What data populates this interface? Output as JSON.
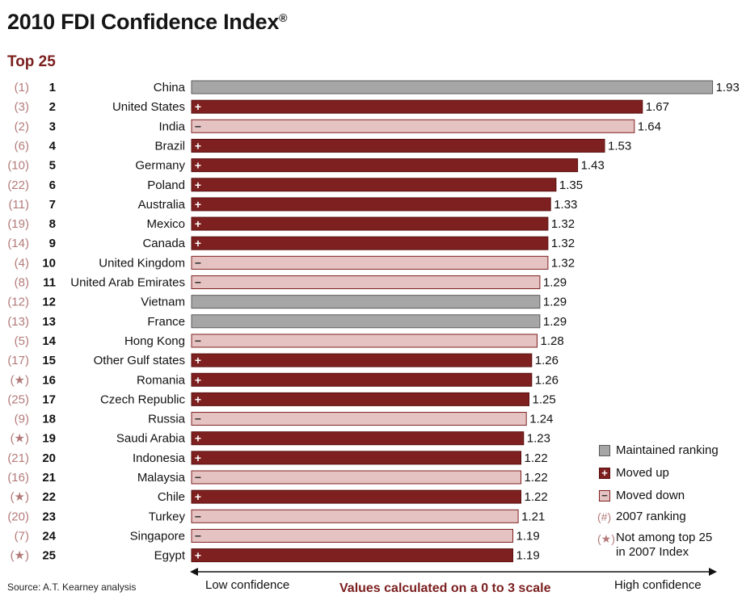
{
  "title": "2010 FDI Confidence Index",
  "title_mark": "®",
  "subtitle": "Top 25",
  "source": "Source: A.T. Kearney analysis",
  "axis": {
    "low_label": "Low confidence",
    "center_label": "Values calculated on a 0 to 3 scale",
    "high_label": "High confidence"
  },
  "colors": {
    "maintained": "#a6a6a6",
    "moved_up": "#7e2020",
    "moved_down": "#e6c3c3",
    "prev_rank_text": "#b47a7a",
    "accent": "#7b1e1e"
  },
  "legend": {
    "maintained": "Maintained ranking",
    "moved_up": "Moved up",
    "moved_down": "Moved down",
    "prev_rank_symbol": "(#)",
    "prev_rank": "2007 ranking",
    "star_symbol": "(★)",
    "not_top25_line1": "Not among top 25",
    "not_top25_line2": "in 2007 Index",
    "up_sign": "+",
    "down_sign": "−"
  },
  "chart_data": {
    "type": "bar",
    "orientation": "horizontal",
    "title": "2010 FDI Confidence Index",
    "subtitle": "Top 25",
    "scale": [
      0,
      3
    ],
    "xlim": [
      0,
      3
    ],
    "grid": false,
    "legend_position": "bottom-right",
    "rows": [
      {
        "prev": "(1)",
        "rank": "1",
        "country": "China",
        "value": 1.93,
        "status": "maintained"
      },
      {
        "prev": "(3)",
        "rank": "2",
        "country": "United States",
        "value": 1.67,
        "status": "up"
      },
      {
        "prev": "(2)",
        "rank": "3",
        "country": "India",
        "value": 1.64,
        "status": "down"
      },
      {
        "prev": "(6)",
        "rank": "4",
        "country": "Brazil",
        "value": 1.53,
        "status": "up"
      },
      {
        "prev": "(10)",
        "rank": "5",
        "country": "Germany",
        "value": 1.43,
        "status": "up"
      },
      {
        "prev": "(22)",
        "rank": "6",
        "country": "Poland",
        "value": 1.35,
        "status": "up"
      },
      {
        "prev": "(11)",
        "rank": "7",
        "country": "Australia",
        "value": 1.33,
        "status": "up"
      },
      {
        "prev": "(19)",
        "rank": "8",
        "country": "Mexico",
        "value": 1.32,
        "status": "up"
      },
      {
        "prev": "(14)",
        "rank": "9",
        "country": "Canada",
        "value": 1.32,
        "status": "up"
      },
      {
        "prev": "(4)",
        "rank": "10",
        "country": "United Kingdom",
        "value": 1.32,
        "status": "down"
      },
      {
        "prev": "(8)",
        "rank": "11",
        "country": "United Arab Emirates",
        "value": 1.29,
        "status": "down"
      },
      {
        "prev": "(12)",
        "rank": "12",
        "country": "Vietnam",
        "value": 1.29,
        "status": "maintained"
      },
      {
        "prev": "(13)",
        "rank": "13",
        "country": "France",
        "value": 1.29,
        "status": "maintained"
      },
      {
        "prev": "(5)",
        "rank": "14",
        "country": "Hong Kong",
        "value": 1.28,
        "status": "down"
      },
      {
        "prev": "(17)",
        "rank": "15",
        "country": "Other Gulf states",
        "value": 1.26,
        "status": "up"
      },
      {
        "prev": "(★)",
        "rank": "16",
        "country": "Romania",
        "value": 1.26,
        "status": "up"
      },
      {
        "prev": "(25)",
        "rank": "17",
        "country": "Czech Republic",
        "value": 1.25,
        "status": "up"
      },
      {
        "prev": "(9)",
        "rank": "18",
        "country": "Russia",
        "value": 1.24,
        "status": "down"
      },
      {
        "prev": "(★)",
        "rank": "19",
        "country": "Saudi Arabia",
        "value": 1.23,
        "status": "up"
      },
      {
        "prev": "(21)",
        "rank": "20",
        "country": "Indonesia",
        "value": 1.22,
        "status": "up"
      },
      {
        "prev": "(16)",
        "rank": "21",
        "country": "Malaysia",
        "value": 1.22,
        "status": "down"
      },
      {
        "prev": "(★)",
        "rank": "22",
        "country": "Chile",
        "value": 1.22,
        "status": "up"
      },
      {
        "prev": "(20)",
        "rank": "23",
        "country": "Turkey",
        "value": 1.21,
        "status": "down"
      },
      {
        "prev": "(7)",
        "rank": "24",
        "country": "Singapore",
        "value": 1.19,
        "status": "down"
      },
      {
        "prev": "(★)",
        "rank": "25",
        "country": "Egypt",
        "value": 1.19,
        "status": "up"
      }
    ]
  }
}
